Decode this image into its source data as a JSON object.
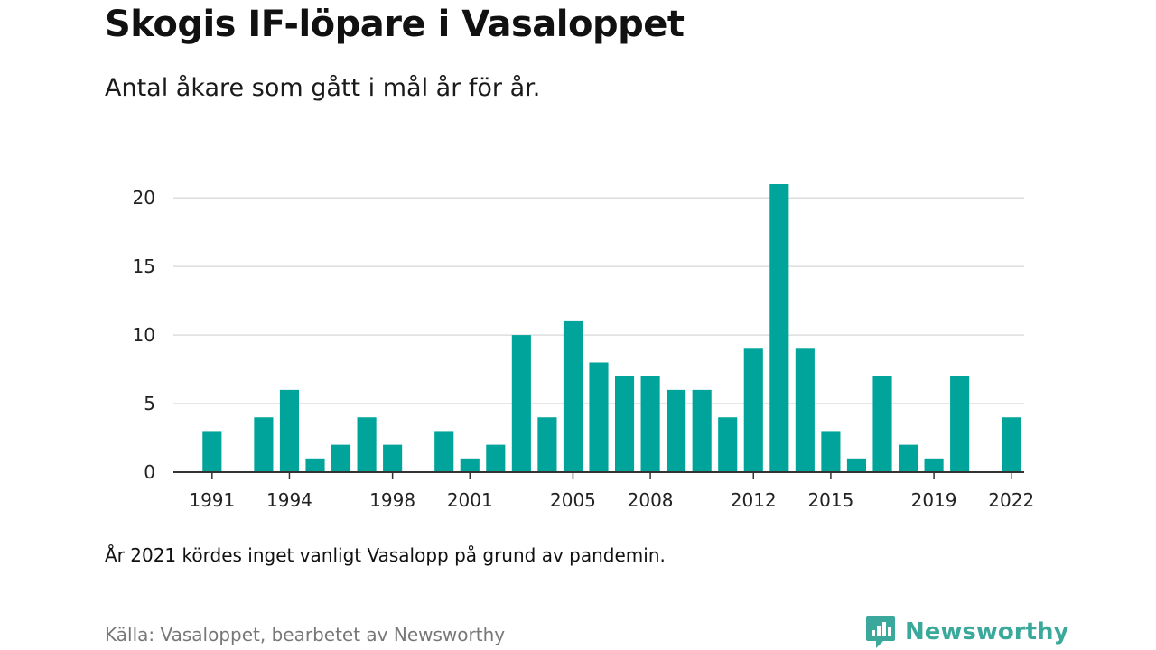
{
  "title": "Skogis IF-löpare i Vasaloppet",
  "subtitle": "Antal åkare som gått i mål år för år.",
  "note": "År 2021 kördes inget vanligt Vasalopp på grund av pandemin.",
  "source": "Källa: Vasaloppet, bearbetet av Newsworthy",
  "brand": {
    "name": "Newsworthy",
    "icon": "newsworthy-logo-icon",
    "color": "#3aa89a"
  },
  "colors": {
    "bar": "#00a49b",
    "grid": "#dddddd",
    "axis": "#333333"
  },
  "chart_data": {
    "type": "bar",
    "categories": [
      1990,
      1991,
      1992,
      1993,
      1994,
      1995,
      1996,
      1997,
      1998,
      1999,
      2000,
      2001,
      2002,
      2003,
      2004,
      2005,
      2006,
      2007,
      2008,
      2009,
      2010,
      2011,
      2012,
      2013,
      2014,
      2015,
      2016,
      2017,
      2018,
      2019,
      2020,
      2021,
      2022
    ],
    "values": [
      0,
      3,
      0,
      4,
      6,
      1,
      2,
      4,
      2,
      0,
      3,
      1,
      2,
      10,
      4,
      11,
      8,
      7,
      7,
      6,
      6,
      4,
      9,
      21,
      9,
      3,
      1,
      7,
      2,
      1,
      7,
      0,
      4
    ],
    "x_tick_labels": [
      "1991",
      "1994",
      "1998",
      "2001",
      "2005",
      "2008",
      "2012",
      "2015",
      "2019",
      "2022"
    ],
    "y_ticks": [
      0,
      5,
      10,
      15,
      20
    ],
    "ylim": [
      0,
      21
    ],
    "grid": true
  }
}
